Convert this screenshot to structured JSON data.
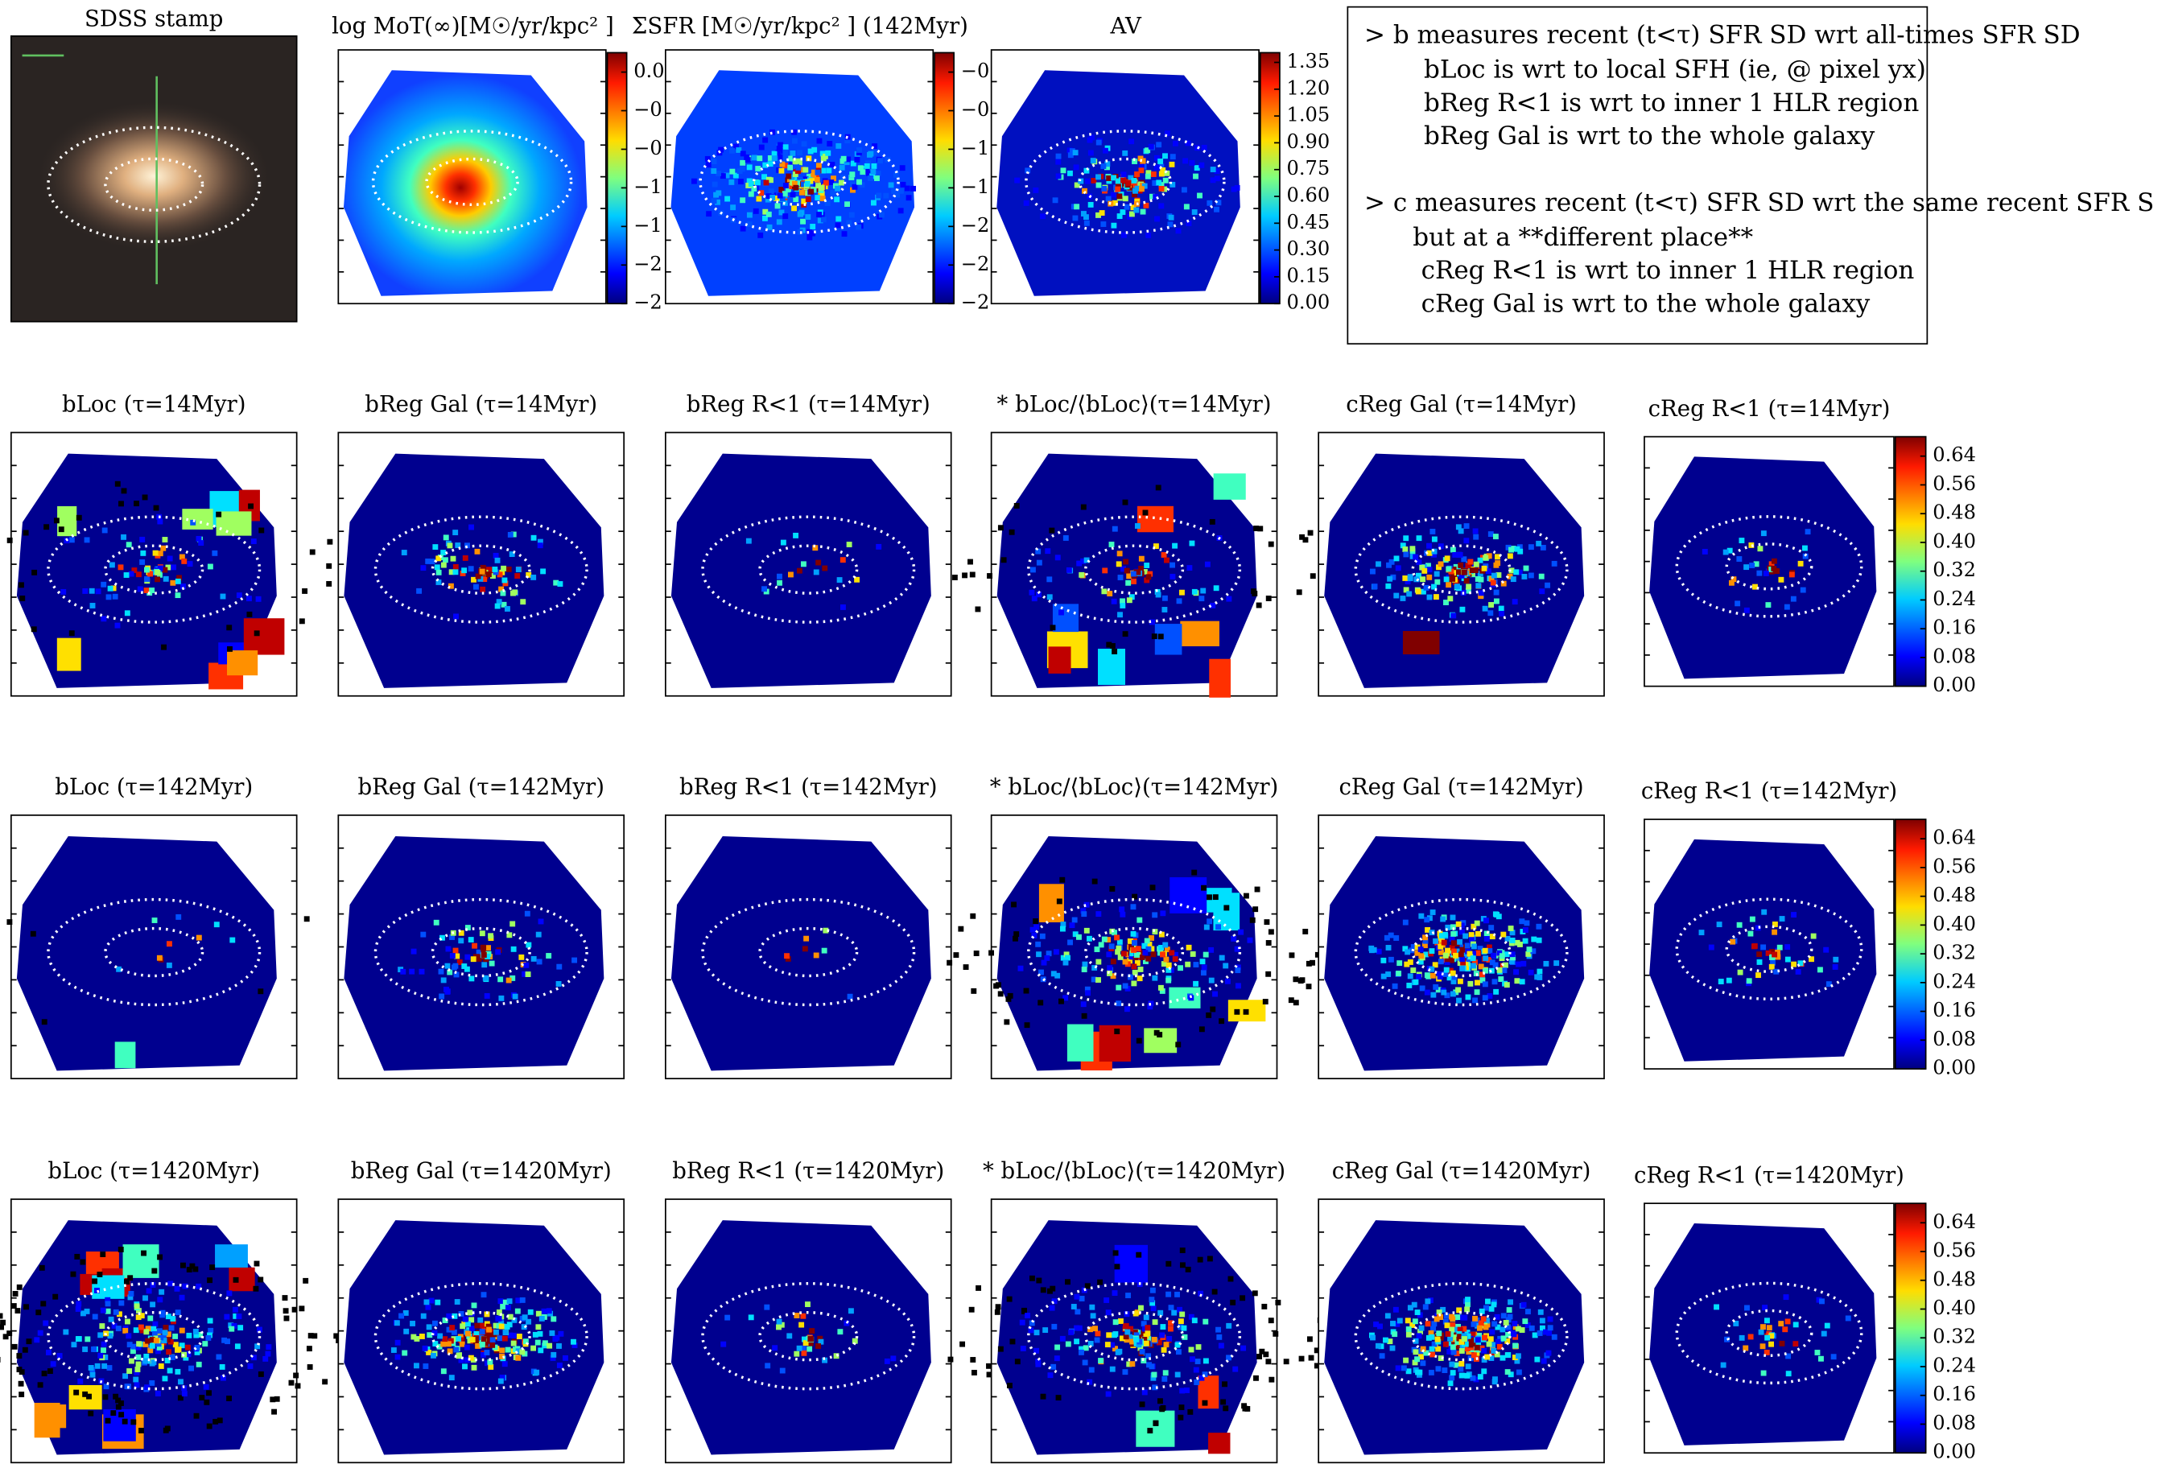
{
  "stamp": {
    "title": "SDSS stamp"
  },
  "top_panels": [
    {
      "title": "log MoT(∞)[M☉/yr/kpc² ]",
      "colorbar": [
        "0.0",
        "−0",
        "−0",
        "−1",
        "−1",
        "−2",
        "−2"
      ]
    },
    {
      "title": "ΣSFR [M☉/yr/kpc² ] (142Myr)",
      "colorbar": [
        "−0",
        "−0",
        "−1",
        "−1",
        "−2",
        "−2",
        "−2"
      ]
    },
    {
      "title": "AV",
      "colorbar": [
        "1.35",
        "1.20",
        "1.05",
        "0.90",
        "0.75",
        "0.60",
        "0.45",
        "0.30",
        "0.15",
        "0.00"
      ]
    }
  ],
  "note": {
    "lines": [
      "> b measures recent (t<τ) SFR SD wrt all-times SFR SD",
      "bLoc is wrt to local SFH (ie, @ pixel yx)",
      "bReg R<1 is wrt to inner 1 HLR region",
      "bReg Gal is wrt to the whole galaxy",
      "> c measures recent (t<τ) SFR SD wrt the same recent SFR S",
      "but at a **different place**",
      "cReg R<1 is wrt to inner 1 HLR region",
      "cReg Gal is wrt to the whole galaxy"
    ]
  },
  "rows": [
    {
      "titles": [
        "bLoc (τ=14Myr)",
        "bReg Gal (τ=14Myr)",
        "bReg R<1 (τ=14Myr)",
        "* bLoc/⟨bLoc⟩(τ=14Myr)",
        "cReg Gal (τ=14Myr)",
        "cReg R<1 (τ=14Myr)"
      ],
      "colorbar": [
        "0.64",
        "0.56",
        "0.48",
        "0.40",
        "0.32",
        "0.24",
        "0.16",
        "0.08",
        "0.00"
      ]
    },
    {
      "titles": [
        "bLoc (τ=142Myr)",
        "bReg Gal (τ=142Myr)",
        "bReg R<1 (τ=142Myr)",
        "* bLoc/⟨bLoc⟩(τ=142Myr)",
        "cReg Gal (τ=142Myr)",
        "cReg R<1 (τ=142Myr)"
      ],
      "colorbar": [
        "0.64",
        "0.56",
        "0.48",
        "0.40",
        "0.32",
        "0.24",
        "0.16",
        "0.08",
        "0.00"
      ]
    },
    {
      "titles": [
        "bLoc (τ=1420Myr)",
        "bReg Gal (τ=1420Myr)",
        "bReg R<1 (τ=1420Myr)",
        "* bLoc/⟨bLoc⟩(τ=1420Myr)",
        "cReg Gal (τ=1420Myr)",
        "cReg R<1 (τ=1420Myr)"
      ],
      "colorbar": [
        "0.64",
        "0.56",
        "0.48",
        "0.40",
        "0.32",
        "0.24",
        "0.16",
        "0.08",
        "0.00"
      ]
    }
  ]
}
